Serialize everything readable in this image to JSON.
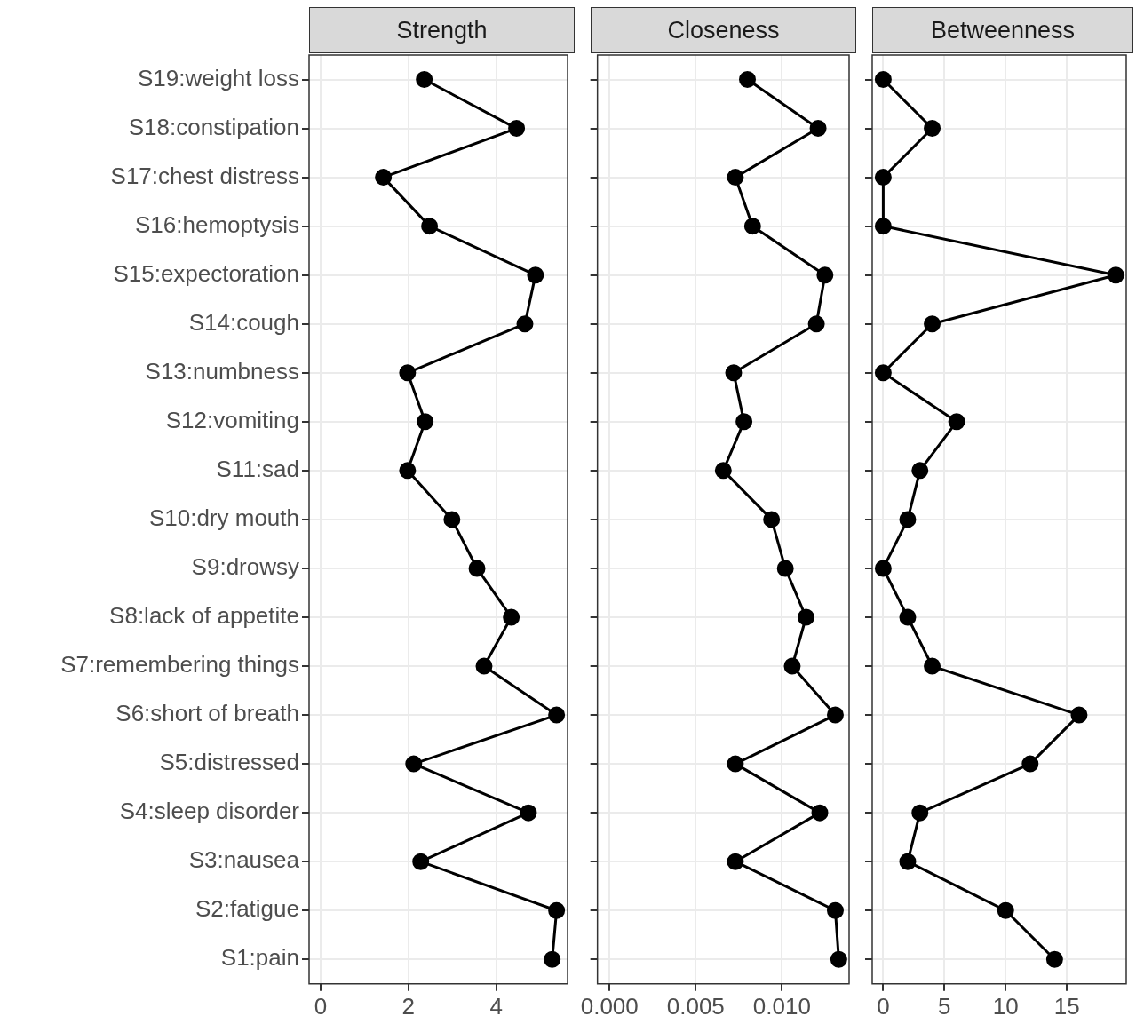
{
  "chart_data": [
    {
      "type": "line",
      "orientation": "horizontal",
      "title": "Strength",
      "categories": [
        "S19:weight loss",
        "S18:constipation",
        "S17:chest distress",
        "S16:hemoptysis",
        "S15:expectoration",
        "S14:cough",
        "S13:numbness",
        "S12:vomiting",
        "S11:sad",
        "S10:dry mouth",
        "S9:drowsy",
        "S8:lack of appetite",
        "S7:remembering things",
        "S6:short of breath",
        "S5:distressed",
        "S4:sleep disorder",
        "S3:nausea",
        "S2:fatigue",
        "S1:pain"
      ],
      "values": [
        2.36,
        4.46,
        1.43,
        2.48,
        4.89,
        4.65,
        1.98,
        2.38,
        1.98,
        2.99,
        3.56,
        4.34,
        3.72,
        5.37,
        2.12,
        4.73,
        2.28,
        5.37,
        5.27
      ],
      "color": "#000000",
      "xlim": [
        -0.26,
        5.62
      ],
      "xticks": [
        0,
        2,
        4
      ],
      "grid": true,
      "marker": "circle",
      "legend": false
    },
    {
      "type": "line",
      "orientation": "horizontal",
      "title": "Closeness",
      "categories": [
        null,
        null,
        null,
        null,
        null,
        null,
        null,
        null,
        null,
        null,
        null,
        null,
        null,
        null,
        null,
        null,
        null,
        null,
        null
      ],
      "values": [
        0.008,
        0.0121,
        0.0073,
        0.0083,
        0.0125,
        0.012,
        0.0072,
        0.0078,
        0.0066,
        0.0094,
        0.0102,
        0.0114,
        0.0106,
        0.0131,
        0.0073,
        0.0122,
        0.0073,
        0.0131,
        0.0133
      ],
      "color": "#000000",
      "xlim": [
        -0.0007,
        0.0139
      ],
      "xticks": [
        {
          "value": 0,
          "label": "0.000"
        },
        {
          "value": 0.005,
          "label": "0.005"
        },
        {
          "value": 0.01,
          "label": "0.010"
        }
      ],
      "grid": true,
      "marker": "circle",
      "legend": false,
      "tick_labels": "x"
    },
    {
      "type": "line",
      "orientation": "horizontal",
      "title": "Betweenness",
      "categories": [
        null,
        null,
        null,
        null,
        null,
        null,
        null,
        null,
        null,
        null,
        null,
        null,
        null,
        null,
        null,
        null,
        null,
        null,
        null
      ],
      "values": [
        0,
        4,
        0,
        0,
        19,
        4,
        0,
        6,
        3,
        2,
        0,
        2,
        4,
        16,
        12,
        3,
        2,
        10,
        14
      ],
      "color": "#000000",
      "xlim": [
        -0.9,
        19.85
      ],
      "xticks": [
        0,
        5,
        10,
        15
      ],
      "grid": true,
      "marker": "circle",
      "legend": false,
      "tick_labels": "x"
    }
  ]
}
